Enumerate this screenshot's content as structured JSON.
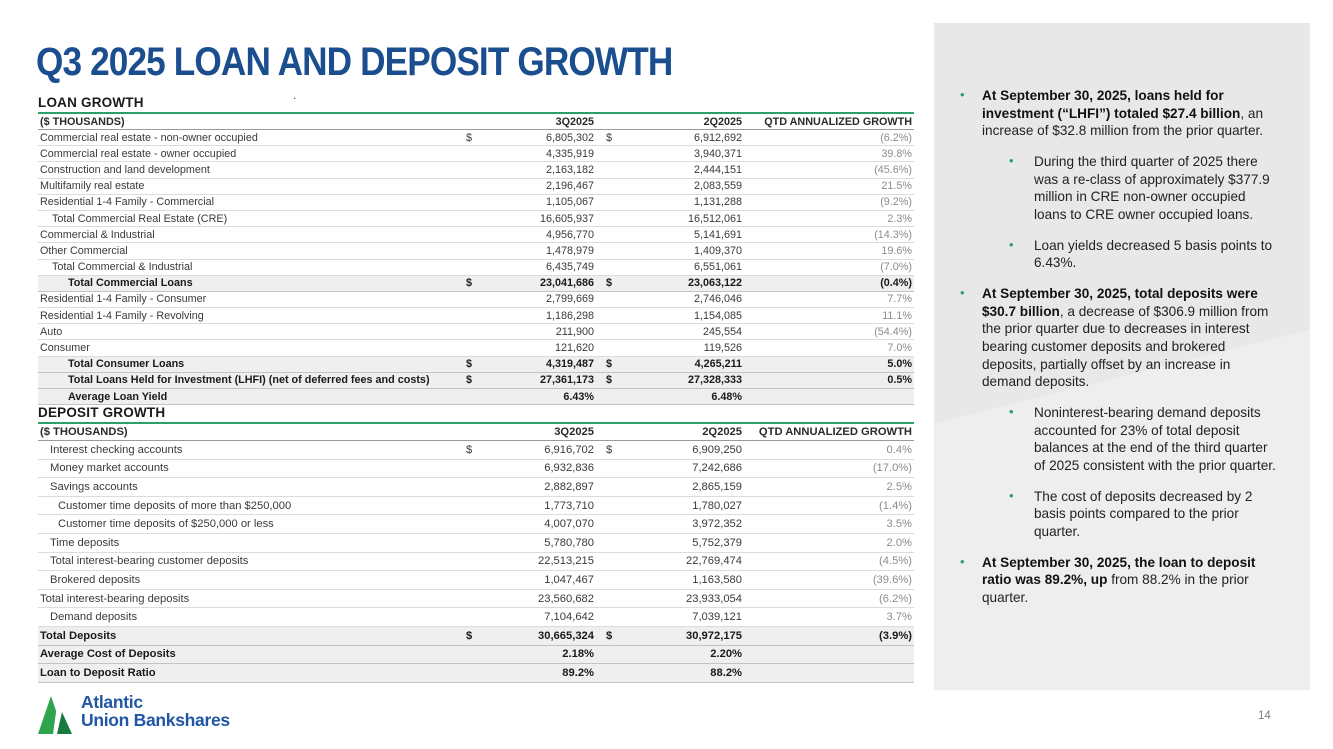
{
  "slide": {
    "title": "Q3 2025 LOAN AND DEPOSIT GROWTH",
    "page_number": "14",
    "stray_dot": "."
  },
  "colors": {
    "title_blue": "#1B4E8F",
    "accent_green": "#2AA06A",
    "logo_blue": "#2156A5",
    "logo_green_light": "#2EA44E",
    "logo_green_dark": "#187A3F",
    "sidebar_bg": "#E8E8E8",
    "total_row_bg": "#EFEFEF",
    "growth_gray": "#8C8C8C"
  },
  "loan_table": {
    "section_title": "LOAN GROWTH",
    "headers": [
      "($ THOUSANDS)",
      "3Q2025",
      "2Q2025",
      "QTD ANNUALIZED GROWTH"
    ],
    "rows": [
      {
        "label": "Commercial real estate - non-owner occupied",
        "d1": "$",
        "q3": "6,805,302",
        "d2": "$",
        "q2": "6,912,692",
        "growth": "(6.2%)",
        "indent": 0,
        "style": "normal"
      },
      {
        "label": "Commercial real estate - owner occupied",
        "q3": "4,335,919",
        "q2": "3,940,371",
        "growth": "39.8%",
        "indent": 0,
        "style": "normal"
      },
      {
        "label": "Construction and land development",
        "q3": "2,163,182",
        "q2": "2,444,151",
        "growth": "(45.6%)",
        "indent": 0,
        "style": "normal"
      },
      {
        "label": "Multifamily real estate",
        "q3": "2,196,467",
        "q2": "2,083,559",
        "growth": "21.5%",
        "indent": 0,
        "style": "normal"
      },
      {
        "label": "Residential 1-4 Family - Commercial",
        "q3": "1,105,067",
        "q2": "1,131,288",
        "growth": "(9.2%)",
        "indent": 0,
        "style": "normal"
      },
      {
        "label": "Total Commercial Real Estate (CRE)",
        "q3": "16,605,937",
        "q2": "16,512,061",
        "growth": "2.3%",
        "indent": 1,
        "style": "normal"
      },
      {
        "label": "Commercial & Industrial",
        "q3": "4,956,770",
        "q2": "5,141,691",
        "growth": "(14.3%)",
        "indent": 0,
        "style": "normal"
      },
      {
        "label": "Other Commercial",
        "q3": "1,478,979",
        "q2": "1,409,370",
        "growth": "19.6%",
        "indent": 0,
        "style": "normal"
      },
      {
        "label": "Total Commercial & Industrial",
        "q3": "6,435,749",
        "q2": "6,551,061",
        "growth": "(7.0%)",
        "indent": 1,
        "style": "normal"
      },
      {
        "label": "Total Commercial Loans",
        "d1": "$",
        "q3": "23,041,686",
        "d2": "$",
        "q2": "23,063,122",
        "growth": "(0.4%)",
        "indent": 2,
        "style": "total"
      },
      {
        "label": "Residential 1-4 Family - Consumer",
        "q3": "2,799,669",
        "q2": "2,746,046",
        "growth": "7.7%",
        "indent": 0,
        "style": "normal"
      },
      {
        "label": "Residential 1-4 Family - Revolving",
        "q3": "1,186,298",
        "q2": "1,154,085",
        "growth": "11.1%",
        "indent": 0,
        "style": "normal"
      },
      {
        "label": "Auto",
        "q3": "211,900",
        "q2": "245,554",
        "growth": "(54.4%)",
        "indent": 0,
        "style": "normal"
      },
      {
        "label": "Consumer",
        "q3": "121,620",
        "q2": "119,526",
        "growth": "7.0%",
        "indent": 0,
        "style": "normal"
      },
      {
        "label": "Total Consumer Loans",
        "d1": "$",
        "q3": "4,319,487",
        "d2": "$",
        "q2": "4,265,211",
        "growth": "5.0%",
        "indent": 2,
        "style": "total"
      },
      {
        "label": "Total Loans Held for Investment (LHFI) (net of deferred fees and costs)",
        "d1": "$",
        "q3": "27,361,173",
        "d2": "$",
        "q2": "27,328,333",
        "growth": "0.5%",
        "indent": 2,
        "style": "total"
      },
      {
        "label": "Average Loan Yield",
        "q3": "6.43%",
        "q2": "6.48%",
        "growth": "",
        "indent": 2,
        "style": "total"
      }
    ]
  },
  "deposit_table": {
    "section_title": "DEPOSIT GROWTH",
    "headers": [
      "($ THOUSANDS)",
      "3Q2025",
      "2Q2025",
      "QTD ANNUALIZED GROWTH"
    ],
    "rows": [
      {
        "label": "Interest checking accounts",
        "d1": "$",
        "q3": "6,916,702",
        "d2": "$",
        "q2": "6,909,250",
        "growth": "0.4%",
        "indent": 1,
        "style": "normal"
      },
      {
        "label": "Money market accounts",
        "q3": "6,932,836",
        "q2": "7,242,686",
        "growth": "(17.0%)",
        "indent": 1,
        "style": "normal"
      },
      {
        "label": "Savings accounts",
        "q3": "2,882,897",
        "q2": "2,865,159",
        "growth": "2.5%",
        "indent": 1,
        "style": "normal"
      },
      {
        "label": "Customer time deposits of more than $250,000",
        "q3": "1,773,710",
        "q2": "1,780,027",
        "growth": "(1.4%)",
        "indent": 2,
        "style": "normal"
      },
      {
        "label": "Customer time deposits of $250,000 or less",
        "q3": "4,007,070",
        "q2": "3,972,352",
        "growth": "3.5%",
        "indent": 2,
        "style": "normal"
      },
      {
        "label": "Time deposits",
        "q3": "5,780,780",
        "q2": "5,752,379",
        "growth": "2.0%",
        "indent": 1,
        "style": "normal"
      },
      {
        "label": "Total interest-bearing customer deposits",
        "q3": "22,513,215",
        "q2": "22,769,474",
        "growth": "(4.5%)",
        "indent": 1,
        "style": "normal"
      },
      {
        "label": "Brokered deposits",
        "q3": "1,047,467",
        "q2": "1,163,580",
        "growth": "(39.6%)",
        "indent": 1,
        "style": "normal"
      },
      {
        "label": "Total interest-bearing deposits",
        "q3": "23,560,682",
        "q2": "23,933,054",
        "growth": "(6.2%)",
        "indent": 0,
        "style": "normal"
      },
      {
        "label": "Demand deposits",
        "q3": "7,104,642",
        "q2": "7,039,121",
        "growth": "3.7%",
        "indent": 1,
        "style": "normal"
      },
      {
        "label": "Total Deposits",
        "d1": "$",
        "q3": "30,665,324",
        "d2": "$",
        "q2": "30,972,175",
        "growth": "(3.9%)",
        "indent": 0,
        "style": "total"
      },
      {
        "label": "Average Cost of Deposits",
        "q3": "2.18%",
        "q2": "2.20%",
        "growth": "",
        "indent": 0,
        "style": "total"
      },
      {
        "label": "Loan to Deposit Ratio",
        "q3": "89.2%",
        "q2": "88.2%",
        "growth": "",
        "indent": 0,
        "style": "total"
      }
    ]
  },
  "sidebar": {
    "bullets": [
      {
        "bold": "At September 30, 2025, loans held for investment (“LHFI”) totaled $27.4 billion",
        "rest": ", an increase of $32.8 million from the prior quarter.",
        "children": [
          {
            "text": "During the third quarter of 2025 there was a re-class of approximately $377.9 million in CRE non-owner occupied loans to CRE owner occupied loans."
          },
          {
            "text": "Loan yields decreased 5 basis points to 6.43%."
          }
        ]
      },
      {
        "bold": "At September 30, 2025, total deposits were $30.7 billion",
        "rest": ", a decrease of $306.9 million from the prior quarter due to decreases in interest bearing customer deposits and brokered deposits, partially offset by an increase in demand deposits.",
        "children": [
          {
            "text": "Noninterest-bearing demand deposits accounted for 23% of total deposit balances at the end of the third quarter of 2025 consistent with the prior quarter."
          },
          {
            "text": "The cost of deposits decreased by 2 basis points compared to the prior quarter."
          }
        ]
      },
      {
        "bold": "At September 30, 2025, the loan to deposit ratio was 89.2%, up",
        "rest": " from 88.2% in the prior quarter.",
        "children": []
      }
    ]
  },
  "footer": {
    "logo_line1": "Atlantic",
    "logo_line2": "Union Bankshares"
  }
}
